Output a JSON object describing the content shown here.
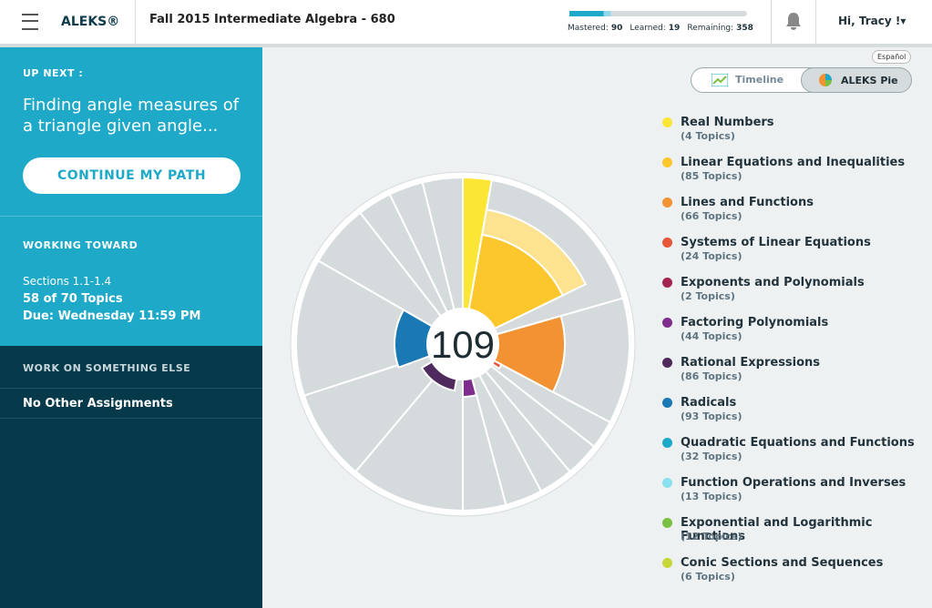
{
  "header": {
    "brand": "ALEKS®",
    "course": "Fall 2015 Intermediate Algebra - 680",
    "progress": {
      "mastered_label": "Mastered:",
      "mastered": 90,
      "learned_label": "Learned:",
      "learned": 19,
      "remaining_label": "Remaining:",
      "remaining": 358
    },
    "greeting": "Hi, Tracy !"
  },
  "sidebar": {
    "up_next_label": "UP NEXT :",
    "up_next_topic": "Finding angle measures of a triangle given angle...",
    "continue_button": "CONTINUE MY PATH",
    "working_toward_label": "WORKING TOWARD",
    "sections": "Sections 1.1-1.4",
    "topics_progress": "58 of 70 Topics",
    "due": "Due: Wednesday 11:59 PM",
    "work_else_label": "WORK ON SOMETHING ELSE",
    "other_assignments": "No Other Assignments"
  },
  "main": {
    "language": "Español",
    "tabs": [
      "Timeline",
      "ALEKS Pie"
    ],
    "pie_center": "109",
    "legend": [
      {
        "name": "Real Numbers",
        "topics": "(4 Topics)"
      },
      {
        "name": "Linear Equations and Inequalities",
        "topics": "(85 Topics)"
      },
      {
        "name": "Lines and Functions",
        "topics": "(66 Topics)"
      },
      {
        "name": "Systems of Linear Equations",
        "topics": "(24 Topics)"
      },
      {
        "name": "Exponents and Polynomials",
        "topics": "(2 Topics)"
      },
      {
        "name": "Factoring Polynomials",
        "topics": "(44 Topics)"
      },
      {
        "name": "Rational Expressions",
        "topics": "(86 Topics)"
      },
      {
        "name": "Radicals",
        "topics": "(93 Topics)"
      },
      {
        "name": "Quadratic Equations and Functions",
        "topics": "(32 Topics)"
      },
      {
        "name": "Function Operations and Inverses",
        "topics": "(13 Topics)"
      },
      {
        "name": "Exponential and Logarithmic Functions",
        "topics": "(12 Topics)"
      },
      {
        "name": "Conic Sections and Sequences",
        "topics": "(6 Topics)"
      }
    ]
  }
}
